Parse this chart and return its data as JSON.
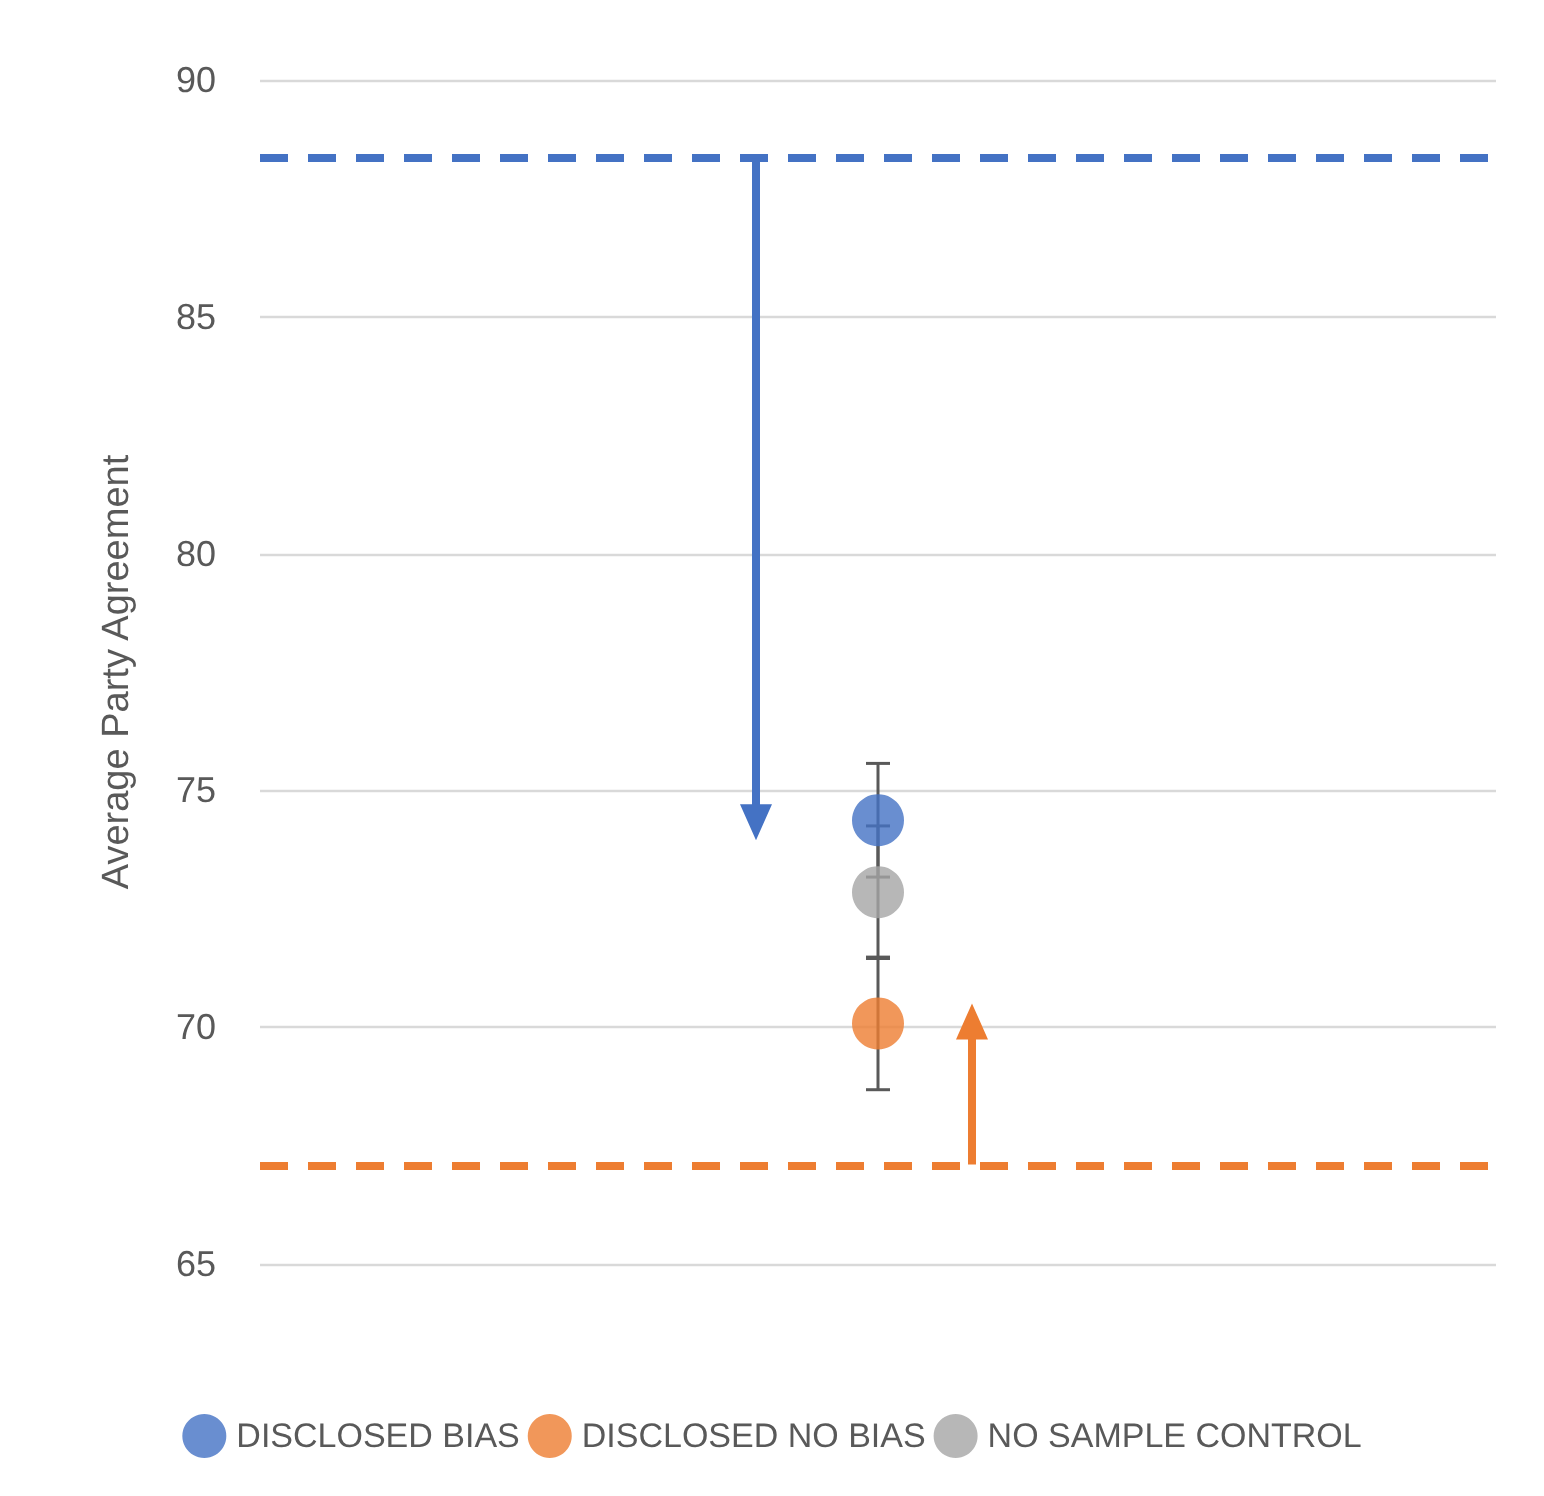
{
  "chart_data": {
    "type": "scatter",
    "ylabel": "Average Party Agreement",
    "categories": [
      null
    ],
    "series": [
      {
        "name": "DISCLOSED BIAS",
        "color": "#4472c4",
        "values": [
          74.37
        ],
        "errors": [
          1.2
        ]
      },
      {
        "name": "DISCLOSED NO BIAS",
        "color": "#ed7d31",
        "values": [
          70.08
        ],
        "errors": [
          1.4
        ]
      },
      {
        "name": "NO SAMPLE CONTROL",
        "color": "#a5a5a5",
        "values": [
          72.85
        ],
        "errors": [
          1.4
        ]
      }
    ],
    "ylim": [
      65,
      90
    ],
    "yticks": [
      65,
      70,
      75,
      80,
      85,
      90
    ],
    "ref_lines": [
      {
        "axis": "y",
        "value": 88.35,
        "color": "#4472c4",
        "line_style": "dashed"
      },
      {
        "axis": "y",
        "value": 67.1,
        "color": "#ed7d31",
        "line_style": "dashed"
      }
    ],
    "grid": "y",
    "legend": "bottom",
    "marker": "circle"
  }
}
